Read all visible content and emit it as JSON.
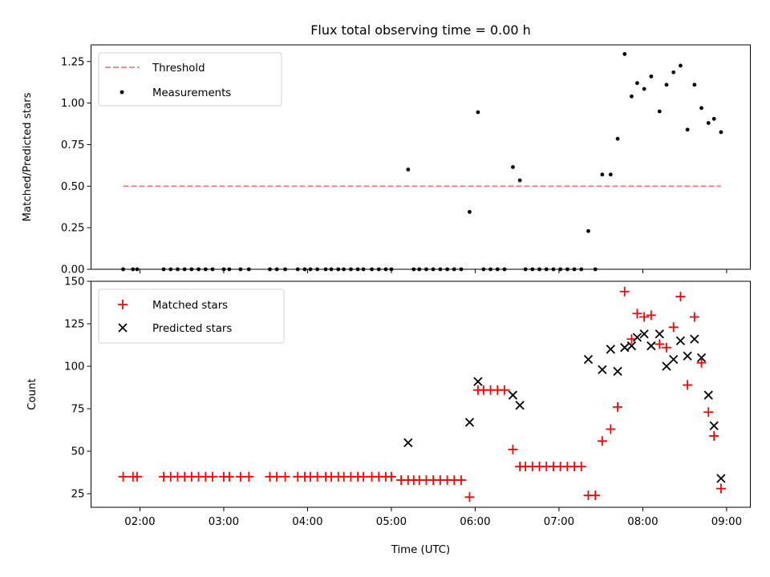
{
  "chart_data": [
    {
      "type": "scatter",
      "title": "Flux total observing time = 0.00 h",
      "xlabel": "",
      "ylabel": "Matched/Predicted stars",
      "ylim": [
        0,
        1.35
      ],
      "yticks": [
        0.0,
        0.25,
        0.5,
        0.75,
        1.0,
        1.25
      ],
      "ytick_labels": [
        "0.00",
        "0.25",
        "0.50",
        "0.75",
        "1.00",
        "1.25"
      ],
      "legend_position": "top-left",
      "colors": {
        "threshold": "#f08080",
        "measurements": "#000000"
      },
      "series": [
        {
          "name": "Threshold",
          "kind": "dashed-line",
          "value": 0.5,
          "x_start": "01:48",
          "x_end": "08:56"
        },
        {
          "name": "Measurements",
          "kind": "points",
          "points": [
            [
              "01:48",
              0
            ],
            [
              "01:55",
              0
            ],
            [
              "01:58",
              0
            ],
            [
              "02:17",
              0
            ],
            [
              "02:22",
              0
            ],
            [
              "02:27",
              0
            ],
            [
              "02:32",
              0
            ],
            [
              "02:37",
              0
            ],
            [
              "02:42",
              0
            ],
            [
              "02:47",
              0
            ],
            [
              "02:52",
              0
            ],
            [
              "03:00",
              0
            ],
            [
              "03:04",
              0
            ],
            [
              "03:12",
              0
            ],
            [
              "03:18",
              0
            ],
            [
              "03:33",
              0
            ],
            [
              "03:38",
              0
            ],
            [
              "03:44",
              0
            ],
            [
              "03:53",
              0
            ],
            [
              "03:58",
              0
            ],
            [
              "04:02",
              0
            ],
            [
              "04:07",
              0
            ],
            [
              "04:13",
              0
            ],
            [
              "04:17",
              0
            ],
            [
              "04:22",
              0
            ],
            [
              "04:26",
              0
            ],
            [
              "04:31",
              0
            ],
            [
              "04:36",
              0
            ],
            [
              "04:40",
              0
            ],
            [
              "04:46",
              0
            ],
            [
              "04:51",
              0
            ],
            [
              "04:56",
              0
            ],
            [
              "05:00",
              0
            ],
            [
              "05:12",
              0.6
            ],
            [
              "05:16",
              0
            ],
            [
              "05:20",
              0
            ],
            [
              "05:25",
              0
            ],
            [
              "05:30",
              0
            ],
            [
              "05:35",
              0
            ],
            [
              "05:40",
              0
            ],
            [
              "05:45",
              0
            ],
            [
              "05:50",
              0
            ],
            [
              "05:56",
              0.345
            ],
            [
              "06:02",
              0.945
            ],
            [
              "06:06",
              0
            ],
            [
              "06:11",
              0
            ],
            [
              "06:16",
              0
            ],
            [
              "06:21",
              0
            ],
            [
              "06:27",
              0.615
            ],
            [
              "06:32",
              0.535
            ],
            [
              "06:36",
              0
            ],
            [
              "06:41",
              0
            ],
            [
              "06:46",
              0
            ],
            [
              "06:51",
              0
            ],
            [
              "06:56",
              0
            ],
            [
              "07:01",
              0
            ],
            [
              "07:06",
              0
            ],
            [
              "07:11",
              0
            ],
            [
              "07:16",
              0
            ],
            [
              "07:21",
              0.23
            ],
            [
              "07:26",
              0
            ],
            [
              "07:31",
              0.57
            ],
            [
              "07:37",
              0.57
            ],
            [
              "07:42",
              0.785
            ],
            [
              "07:47",
              1.295
            ],
            [
              "07:52",
              1.04
            ],
            [
              "07:56",
              1.12
            ],
            [
              "08:01",
              1.085
            ],
            [
              "08:06",
              1.16
            ],
            [
              "08:12",
              0.95
            ],
            [
              "08:17",
              1.11
            ],
            [
              "08:22",
              1.185
            ],
            [
              "08:27",
              1.225
            ],
            [
              "08:32",
              0.84
            ],
            [
              "08:37",
              1.11
            ],
            [
              "08:42",
              0.97
            ],
            [
              "08:47",
              0.88
            ],
            [
              "08:51",
              0.905
            ],
            [
              "08:56",
              0.825
            ]
          ]
        }
      ]
    },
    {
      "type": "scatter",
      "title": "",
      "xlabel": "Time (UTC)",
      "ylabel": "Count",
      "ylim": [
        17,
        150
      ],
      "yticks": [
        25,
        50,
        75,
        100,
        125,
        150
      ],
      "ytick_labels": [
        "25",
        "50",
        "75",
        "100",
        "125",
        "150"
      ],
      "xlim": [
        "01:25",
        "09:17"
      ],
      "xticks": [
        "02:00",
        "03:00",
        "04:00",
        "05:00",
        "06:00",
        "07:00",
        "08:00",
        "09:00"
      ],
      "xtick_labels": [
        "02:00",
        "03:00",
        "04:00",
        "05:00",
        "06:00",
        "07:00",
        "08:00",
        "09:00"
      ],
      "legend_position": "top-left",
      "colors": {
        "matched": "#ff0000",
        "predicted": "#000000"
      },
      "series": [
        {
          "name": "Matched stars",
          "marker": "+",
          "points": [
            [
              "01:48",
              35
            ],
            [
              "01:55",
              35
            ],
            [
              "01:58",
              35
            ],
            [
              "02:17",
              35
            ],
            [
              "02:22",
              35
            ],
            [
              "02:27",
              35
            ],
            [
              "02:32",
              35
            ],
            [
              "02:37",
              35
            ],
            [
              "02:42",
              35
            ],
            [
              "02:47",
              35
            ],
            [
              "02:52",
              35
            ],
            [
              "03:00",
              35
            ],
            [
              "03:04",
              35
            ],
            [
              "03:12",
              35
            ],
            [
              "03:18",
              35
            ],
            [
              "03:33",
              35
            ],
            [
              "03:38",
              35
            ],
            [
              "03:44",
              35
            ],
            [
              "03:53",
              35
            ],
            [
              "03:58",
              35
            ],
            [
              "04:02",
              35
            ],
            [
              "04:07",
              35
            ],
            [
              "04:13",
              35
            ],
            [
              "04:17",
              35
            ],
            [
              "04:22",
              35
            ],
            [
              "04:26",
              35
            ],
            [
              "04:31",
              35
            ],
            [
              "04:36",
              35
            ],
            [
              "04:40",
              35
            ],
            [
              "04:46",
              35
            ],
            [
              "04:51",
              35
            ],
            [
              "04:56",
              35
            ],
            [
              "05:00",
              35
            ],
            [
              "05:07",
              33
            ],
            [
              "05:12",
              33
            ],
            [
              "05:16",
              33
            ],
            [
              "05:20",
              33
            ],
            [
              "05:25",
              33
            ],
            [
              "05:30",
              33
            ],
            [
              "05:35",
              33
            ],
            [
              "05:40",
              33
            ],
            [
              "05:45",
              33
            ],
            [
              "05:50",
              33
            ],
            [
              "05:56",
              23
            ],
            [
              "06:02",
              86
            ],
            [
              "06:06",
              86
            ],
            [
              "06:11",
              86
            ],
            [
              "06:16",
              86
            ],
            [
              "06:21",
              86
            ],
            [
              "06:27",
              51
            ],
            [
              "06:32",
              41
            ],
            [
              "06:36",
              41
            ],
            [
              "06:41",
              41
            ],
            [
              "06:46",
              41
            ],
            [
              "06:51",
              41
            ],
            [
              "06:56",
              41
            ],
            [
              "07:01",
              41
            ],
            [
              "07:06",
              41
            ],
            [
              "07:11",
              41
            ],
            [
              "07:16",
              41
            ],
            [
              "07:21",
              24
            ],
            [
              "07:26",
              24
            ],
            [
              "07:31",
              56
            ],
            [
              "07:37",
              63
            ],
            [
              "07:42",
              76
            ],
            [
              "07:47",
              144
            ],
            [
              "07:52",
              116
            ],
            [
              "07:56",
              131
            ],
            [
              "08:01",
              129
            ],
            [
              "08:06",
              130
            ],
            [
              "08:12",
              113
            ],
            [
              "08:17",
              111
            ],
            [
              "08:22",
              123
            ],
            [
              "08:27",
              141
            ],
            [
              "08:32",
              89
            ],
            [
              "08:37",
              129
            ],
            [
              "08:42",
              102
            ],
            [
              "08:47",
              73
            ],
            [
              "08:51",
              59
            ],
            [
              "08:56",
              28
            ]
          ]
        },
        {
          "name": "Predicted stars",
          "marker": "x",
          "points": [
            [
              "05:12",
              55
            ],
            [
              "05:56",
              67
            ],
            [
              "06:02",
              91
            ],
            [
              "06:27",
              83
            ],
            [
              "06:32",
              77
            ],
            [
              "07:21",
              104
            ],
            [
              "07:31",
              98
            ],
            [
              "07:37",
              110
            ],
            [
              "07:42",
              97
            ],
            [
              "07:47",
              111
            ],
            [
              "07:52",
              112
            ],
            [
              "07:56",
              117
            ],
            [
              "08:01",
              119
            ],
            [
              "08:06",
              112
            ],
            [
              "08:12",
              119
            ],
            [
              "08:17",
              100
            ],
            [
              "08:22",
              104
            ],
            [
              "08:27",
              115
            ],
            [
              "08:32",
              106
            ],
            [
              "08:37",
              116
            ],
            [
              "08:42",
              105
            ],
            [
              "08:47",
              83
            ],
            [
              "08:51",
              65
            ],
            [
              "08:56",
              34
            ]
          ]
        }
      ]
    }
  ]
}
